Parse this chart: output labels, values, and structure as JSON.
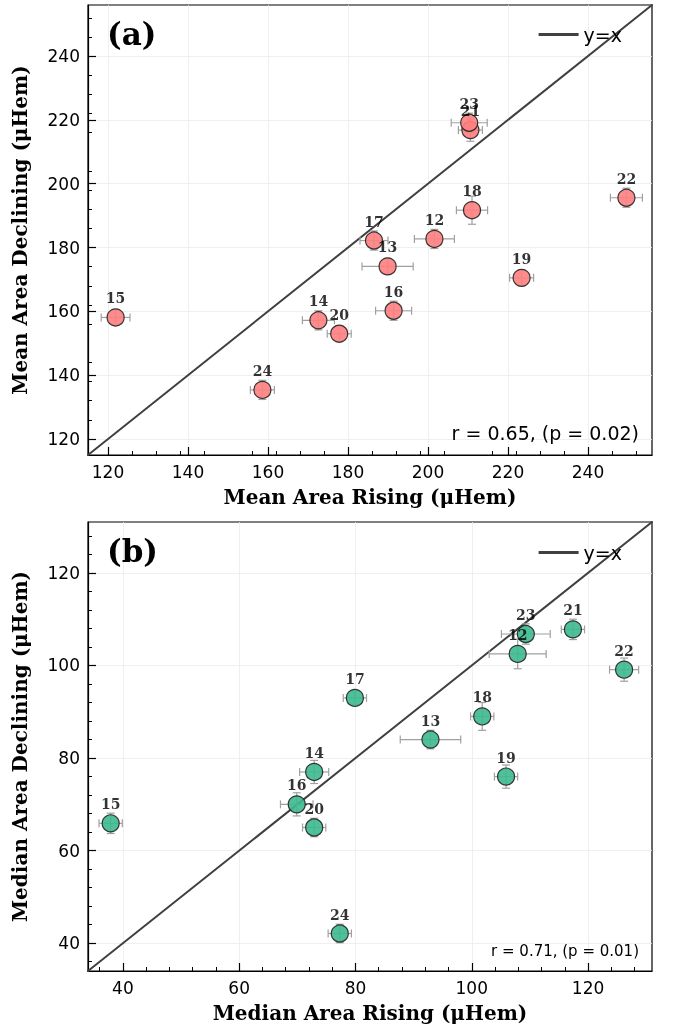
{
  "chart_data": [
    {
      "type": "scatter",
      "title": "(a)",
      "xlabel": "Mean Area Rising (μHem)",
      "ylabel": "Mean Area Declining (μHem)",
      "xlim": [
        115,
        256
      ],
      "ylim": [
        115,
        256
      ],
      "xticks": [
        120,
        140,
        160,
        180,
        200,
        220,
        240
      ],
      "yticks": [
        120,
        140,
        160,
        180,
        200,
        220,
        240
      ],
      "grid": true,
      "legend": "top right",
      "series": [
        {
          "type": "line",
          "name": "y=x",
          "color": "#404040",
          "x": [
            115,
            256
          ],
          "values": [
            115,
            256
          ],
          "line_style": "solid",
          "marker": "none"
        },
        {
          "marker": "circle",
          "color": "#ff7f7f",
          "x": [
            121.9,
            172.6,
            177.8,
            158.6,
            191.4,
            189.9,
            186.5,
            201.6,
            211.0,
            223.4,
            249.6,
            210.6,
            210.3
          ],
          "values": [
            158.1,
            157.2,
            153.0,
            135.4,
            160.2,
            174.1,
            182.2,
            182.7,
            191.7,
            170.5,
            195.6,
            216.8,
            219.1
          ],
          "xerrors": [
            3.6,
            4,
            3,
            3,
            4.5,
            6.4,
            3.5,
            5,
            3.9,
            3,
            4,
            3,
            4.5
          ],
          "errors": [
            2.5,
            3,
            2.5,
            3,
            3,
            2.5,
            3,
            3,
            4.4,
            2.5,
            3,
            3.5,
            3
          ]
        }
      ],
      "annotations": [
        {
          "text": "15",
          "x": 121.9,
          "y": 158.1
        },
        {
          "text": "14",
          "x": 172.6,
          "y": 157.2
        },
        {
          "text": "20",
          "x": 177.8,
          "y": 153.0
        },
        {
          "text": "24",
          "x": 158.6,
          "y": 135.4
        },
        {
          "text": "16",
          "x": 191.4,
          "y": 160.2
        },
        {
          "text": "13",
          "x": 189.9,
          "y": 174.1
        },
        {
          "text": "17",
          "x": 186.5,
          "y": 182.2
        },
        {
          "text": "12",
          "x": 201.6,
          "y": 182.7
        },
        {
          "text": "18",
          "x": 211.0,
          "y": 191.7
        },
        {
          "text": "19",
          "x": 223.4,
          "y": 170.5
        },
        {
          "text": "22",
          "x": 249.6,
          "y": 195.6
        },
        {
          "text": "21",
          "x": 210.6,
          "y": 216.8
        },
        {
          "text": "23",
          "x": 210.3,
          "y": 219.1
        },
        "r = 0.65, (p = 0.02)"
      ]
    },
    {
      "type": "scatter",
      "title": "(b)",
      "xlabel": "Median Area Rising (μHem)",
      "ylabel": "Median Area Declining (μHem)",
      "xlim": [
        34,
        131
      ],
      "ylim": [
        34,
        131
      ],
      "xticks": [
        40,
        60,
        80,
        100,
        120
      ],
      "yticks": [
        40,
        60,
        80,
        100,
        120
      ],
      "grid": true,
      "legend": "top right",
      "series": [
        {
          "type": "line",
          "name": "y=x",
          "color": "#404040",
          "x": [
            34,
            131
          ],
          "values": [
            34,
            131
          ],
          "line_style": "solid",
          "marker": "none"
        },
        {
          "marker": "circle",
          "color": "#3cb98f",
          "x": [
            109.3,
            117.4,
            107.9,
            126.2,
            79.9,
            101.8,
            92.9,
            105.9,
            72.9,
            69.9,
            37.9,
            72.9,
            77.3
          ],
          "values": [
            106.8,
            107.8,
            102.5,
            99.1,
            93.0,
            89.0,
            84.0,
            76.0,
            77.0,
            70.0,
            65.9,
            65.0,
            42.1
          ],
          "xerrors": [
            4.2,
            2,
            4.9,
            2.5,
            2,
            2,
            5.2,
            2,
            2.5,
            2.8,
            2,
            2,
            2
          ],
          "errors": [
            2.2,
            2.2,
            3.2,
            2.5,
            1.5,
            3,
            2,
            2.5,
            2.5,
            2.5,
            2.2,
            2,
            2
          ]
        }
      ],
      "annotations": [
        {
          "text": "23",
          "x": 109.3,
          "y": 106.8
        },
        {
          "text": "21",
          "x": 117.4,
          "y": 107.8
        },
        {
          "text": "12",
          "x": 107.9,
          "y": 102.5
        },
        {
          "text": "22",
          "x": 126.2,
          "y": 99.1
        },
        {
          "text": "17",
          "x": 79.9,
          "y": 93.0
        },
        {
          "text": "18",
          "x": 101.8,
          "y": 89.0
        },
        {
          "text": "13",
          "x": 92.9,
          "y": 84.0
        },
        {
          "text": "19",
          "x": 105.9,
          "y": 76.0
        },
        {
          "text": "14",
          "x": 72.9,
          "y": 77.0
        },
        {
          "text": "16",
          "x": 69.9,
          "y": 70.0
        },
        {
          "text": "15",
          "x": 37.9,
          "y": 65.9
        },
        {
          "text": "20",
          "x": 72.9,
          "y": 65.0
        },
        {
          "text": "24",
          "x": 77.3,
          "y": 42.1
        },
        "r = 0.71, (p = 0.01)"
      ]
    }
  ]
}
